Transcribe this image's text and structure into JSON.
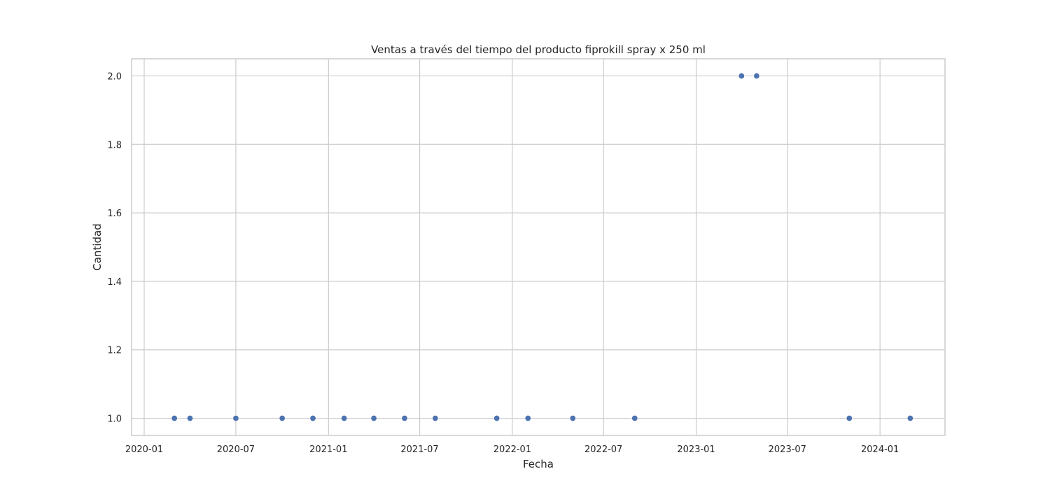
{
  "chart_data": {
    "type": "scatter",
    "title": "Ventas a través del tiempo del producto fiprokill spray x 250 ml",
    "xlabel": "Fecha",
    "ylabel": "Cantidad",
    "x_type": "date",
    "xlim": [
      "2019-12-07",
      "2024-05-09"
    ],
    "ylim": [
      0.95,
      2.05
    ],
    "grid": true,
    "point_color": "#4c72b0",
    "x_ticks": [
      "2020-01",
      "2020-07",
      "2021-01",
      "2021-07",
      "2022-01",
      "2022-07",
      "2023-01",
      "2023-07",
      "2024-01"
    ],
    "x_tick_dates": [
      "2020-01-01",
      "2020-07-01",
      "2021-01-01",
      "2021-07-01",
      "2022-01-01",
      "2022-07-01",
      "2023-01-01",
      "2023-07-01",
      "2024-01-01"
    ],
    "y_ticks": [
      "1.0",
      "1.2",
      "1.4",
      "1.6",
      "1.8",
      "2.0"
    ],
    "y_tick_values": [
      1.0,
      1.2,
      1.4,
      1.6,
      1.8,
      2.0
    ],
    "points": [
      {
        "x": "2020-03-01",
        "y": 1
      },
      {
        "x": "2020-04-01",
        "y": 1
      },
      {
        "x": "2020-07-01",
        "y": 1
      },
      {
        "x": "2020-10-01",
        "y": 1
      },
      {
        "x": "2020-12-01",
        "y": 1
      },
      {
        "x": "2021-02-01",
        "y": 1
      },
      {
        "x": "2021-04-01",
        "y": 1
      },
      {
        "x": "2021-06-01",
        "y": 1
      },
      {
        "x": "2021-08-01",
        "y": 1
      },
      {
        "x": "2021-12-01",
        "y": 1
      },
      {
        "x": "2022-02-01",
        "y": 1
      },
      {
        "x": "2022-05-01",
        "y": 1
      },
      {
        "x": "2022-09-01",
        "y": 1
      },
      {
        "x": "2023-04-01",
        "y": 2
      },
      {
        "x": "2023-05-01",
        "y": 2
      },
      {
        "x": "2023-11-01",
        "y": 1
      },
      {
        "x": "2024-03-01",
        "y": 1
      }
    ]
  }
}
